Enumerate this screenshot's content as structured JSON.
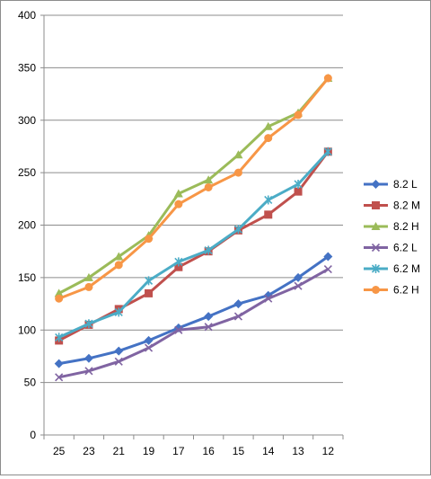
{
  "chart_data": {
    "type": "line",
    "title": "",
    "xlabel": "",
    "ylabel": "",
    "categories": [
      "25",
      "23",
      "21",
      "19",
      "17",
      "16",
      "15",
      "14",
      "13",
      "12"
    ],
    "ylim": [
      0,
      400
    ],
    "yticks": [
      0,
      50,
      100,
      150,
      200,
      250,
      300,
      350,
      400
    ],
    "grid": "horizontal-major",
    "legend": "right",
    "series": [
      {
        "name": "8.2 L",
        "color": "#4472c4",
        "marker": "diamond",
        "values": [
          68,
          73,
          80,
          90,
          102,
          113,
          125,
          133,
          150,
          170
        ]
      },
      {
        "name": "8.2 M",
        "color": "#c0504d",
        "marker": "square",
        "values": [
          90,
          105,
          120,
          135,
          160,
          175,
          195,
          210,
          232,
          270
        ]
      },
      {
        "name": "8.2 H",
        "color": "#9bbb59",
        "marker": "triangle",
        "values": [
          135,
          150,
          170,
          190,
          230,
          243,
          267,
          294,
          307,
          340
        ]
      },
      {
        "name": "6.2 L",
        "color": "#8064a2",
        "marker": "x",
        "values": [
          55,
          61,
          70,
          83,
          100,
          103,
          113,
          130,
          142,
          158
        ]
      },
      {
        "name": "6.2 M",
        "color": "#4bacc6",
        "marker": "star",
        "values": [
          93,
          106,
          117,
          147,
          165,
          176,
          196,
          224,
          239,
          270
        ]
      },
      {
        "name": "6.2 H",
        "color": "#f79646",
        "marker": "circle",
        "values": [
          130,
          141,
          162,
          187,
          220,
          236,
          250,
          283,
          305,
          340
        ]
      }
    ]
  }
}
